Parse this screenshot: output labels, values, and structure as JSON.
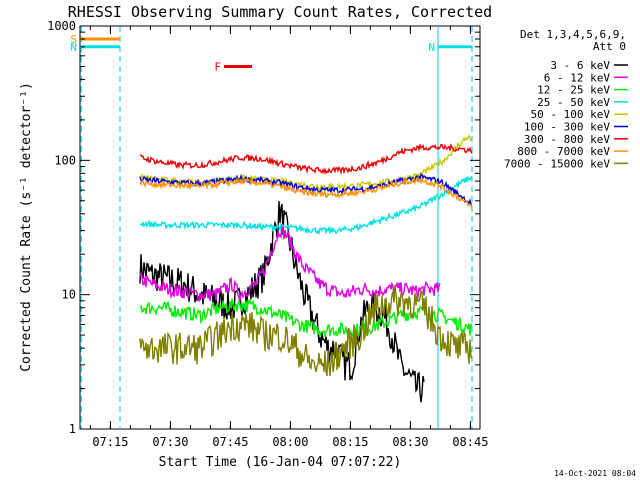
{
  "chart_data": {
    "type": "line",
    "title": "RHESSI Observing Summary Count Rates, Corrected",
    "xlabel": "Start Time (16-Jan-04 07:07:22)",
    "ylabel": "Corrected Count Rate (s⁻¹ detector⁻¹)",
    "x_unit": "minutes after 07:07:22",
    "xlim": [
      0,
      100
    ],
    "ylim": [
      1,
      1000
    ],
    "yscale": "log",
    "x_ticks": [
      {
        "t": 7.6,
        "label": "07:15"
      },
      {
        "t": 22.6,
        "label": "07:30"
      },
      {
        "t": 37.6,
        "label": "07:45"
      },
      {
        "t": 52.6,
        "label": "08:00"
      },
      {
        "t": 67.6,
        "label": "08:15"
      },
      {
        "t": 82.6,
        "label": "08:30"
      },
      {
        "t": 97.6,
        "label": "08:45"
      }
    ],
    "y_ticks": [
      {
        "v": 1,
        "label": "1"
      },
      {
        "v": 10,
        "label": "10"
      },
      {
        "v": 100,
        "label": "100"
      },
      {
        "v": 1000,
        "label": "1000"
      }
    ],
    "legend_header": [
      "Det 1,3,4,5,6,9,",
      "Att 0"
    ],
    "legend_position": "right",
    "series": [
      {
        "name": "3 - 6 keV",
        "color": "#000000",
        "x": [
          15,
          18,
          22,
          26,
          30,
          34,
          38,
          42,
          46,
          48,
          50,
          52,
          54,
          56,
          58,
          60,
          62,
          64,
          66,
          68,
          70,
          72,
          74,
          76,
          78,
          80,
          82,
          84,
          86
        ],
        "y": [
          16,
          14,
          13,
          12,
          10,
          9,
          8,
          10,
          14,
          25,
          42,
          28,
          16,
          10,
          7,
          5,
          4,
          4,
          3,
          3,
          6,
          8,
          8,
          7,
          5,
          3,
          2.5,
          2,
          2
        ]
      },
      {
        "name": "6 - 12 keV",
        "color": "#e000e0",
        "x": [
          15,
          18,
          22,
          26,
          30,
          34,
          38,
          40,
          42,
          44,
          46,
          48,
          50,
          52,
          54,
          56,
          58,
          60,
          62,
          64,
          66,
          68,
          70,
          72,
          74,
          76,
          78,
          80,
          82,
          84,
          86,
          88,
          90
        ],
        "y": [
          13,
          12,
          11,
          10.5,
          10,
          10,
          12,
          10,
          11,
          12,
          15,
          22,
          31,
          27,
          20,
          16,
          14,
          12,
          11,
          10.5,
          10,
          10.5,
          11,
          11,
          10.5,
          11,
          11,
          11,
          11,
          10.5,
          11,
          11,
          11
        ]
      },
      {
        "name": "12 - 25 keV",
        "color": "#00ee00",
        "x": [
          15,
          20,
          25,
          30,
          35,
          40,
          45,
          50,
          55,
          60,
          65,
          70,
          75,
          80,
          85,
          90,
          95,
          98
        ],
        "y": [
          8,
          8,
          7.5,
          7,
          8,
          8.5,
          8,
          7,
          6,
          5.5,
          5.5,
          5.5,
          6,
          7,
          7.5,
          7,
          6,
          5.5
        ]
      },
      {
        "name": "25 - 50 keV",
        "color": "#00e0e0",
        "x": [
          15,
          20,
          25,
          30,
          35,
          40,
          45,
          50,
          55,
          60,
          65,
          70,
          75,
          80,
          85,
          90,
          93,
          96,
          98
        ],
        "y": [
          34,
          33,
          33,
          33,
          33,
          33,
          32,
          32,
          31,
          30,
          30,
          32,
          36,
          40,
          45,
          55,
          62,
          70,
          75
        ]
      },
      {
        "name": "50 - 100 keV",
        "color": "#c8c800",
        "x": [
          15,
          20,
          25,
          30,
          35,
          40,
          45,
          50,
          55,
          60,
          65,
          70,
          75,
          80,
          85,
          88,
          91,
          94,
          97,
          98
        ],
        "y": [
          75,
          72,
          70,
          68,
          70,
          74,
          72,
          70,
          66,
          64,
          64,
          65,
          68,
          72,
          78,
          88,
          100,
          125,
          150,
          140
        ]
      },
      {
        "name": "100 - 300 keV",
        "color": "#0000dd",
        "x": [
          15,
          20,
          25,
          30,
          35,
          40,
          45,
          50,
          55,
          60,
          65,
          70,
          75,
          80,
          85,
          90,
          95,
          98
        ],
        "y": [
          72,
          70,
          68,
          67,
          70,
          73,
          71,
          68,
          63,
          60,
          60,
          61,
          64,
          70,
          75,
          70,
          55,
          47
        ]
      },
      {
        "name": "300 - 800 keV",
        "color": "#ee0000",
        "x": [
          15,
          20,
          25,
          30,
          35,
          40,
          45,
          50,
          55,
          60,
          65,
          70,
          75,
          80,
          85,
          90,
          95,
          98
        ],
        "y": [
          105,
          97,
          92,
          92,
          98,
          105,
          103,
          95,
          88,
          84,
          84,
          88,
          98,
          115,
          125,
          125,
          122,
          118
        ]
      },
      {
        "name": "800 - 7000 keV",
        "color": "#ff9000",
        "x": [
          15,
          20,
          25,
          30,
          35,
          40,
          45,
          50,
          55,
          60,
          65,
          70,
          75,
          80,
          85,
          90,
          95,
          98
        ],
        "y": [
          68,
          66,
          65,
          64,
          67,
          70,
          68,
          64,
          58,
          56,
          56,
          58,
          62,
          68,
          72,
          65,
          52,
          45
        ]
      },
      {
        "name": "7000 - 15000 keV",
        "color": "#808000",
        "x": [
          15,
          20,
          25,
          30,
          35,
          38,
          42,
          46,
          50,
          54,
          58,
          62,
          66,
          70,
          74,
          78,
          82,
          86,
          90,
          94,
          98
        ],
        "y": [
          4,
          4,
          4,
          4,
          5,
          6,
          6,
          5,
          5,
          4,
          3,
          3,
          4,
          5,
          8,
          9,
          9,
          8,
          5,
          4,
          4
        ]
      }
    ],
    "annotations": {
      "flags": [
        {
          "label": "S",
          "color": "#ff9000",
          "x_range": [
            0,
            10
          ],
          "level": 800
        },
        {
          "label": "N",
          "color": "#00e0e0",
          "x_range": [
            0,
            10
          ],
          "level": 700
        },
        {
          "label": "N",
          "color": "#00e0e0",
          "x_range": [
            89.5,
            98
          ],
          "level": 700
        },
        {
          "label": "F",
          "color": "#ee0000",
          "x_range": [
            36,
            43
          ],
          "level": 500
        }
      ],
      "vertical_lines": [
        {
          "x": 0.3,
          "style": "dashed"
        },
        {
          "x": 10,
          "style": "dashed"
        },
        {
          "x": 89.5,
          "style": "solid"
        },
        {
          "x": 98,
          "style": "dashed"
        }
      ]
    }
  },
  "footer": {
    "date": "14-Oct-2021 08:04"
  }
}
